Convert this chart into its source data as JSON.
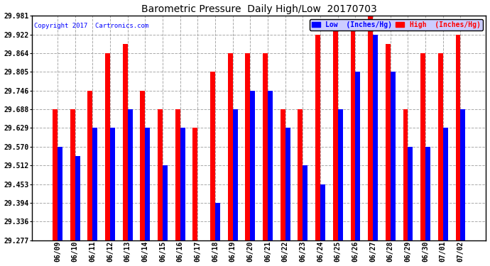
{
  "title": "Barometric Pressure  Daily High/Low  20170703",
  "copyright": "Copyright 2017  Cartronics.com",
  "legend_low": "Low  (Inches/Hg)",
  "legend_high": "High  (Inches/Hg)",
  "dates": [
    "06/09",
    "06/10",
    "06/11",
    "06/12",
    "06/13",
    "06/14",
    "06/15",
    "06/16",
    "06/17",
    "06/18",
    "06/19",
    "06/20",
    "06/21",
    "06/22",
    "06/23",
    "06/24",
    "06/25",
    "06/26",
    "06/27",
    "06/28",
    "06/29",
    "06/30",
    "07/01",
    "07/02"
  ],
  "low_values": [
    29.57,
    29.541,
    29.629,
    29.629,
    29.688,
    29.629,
    29.512,
    29.629,
    29.277,
    29.394,
    29.688,
    29.746,
    29.746,
    29.629,
    29.512,
    29.453,
    29.688,
    29.805,
    29.922,
    29.805,
    29.57,
    29.57,
    29.629,
    29.688
  ],
  "high_values": [
    29.688,
    29.688,
    29.746,
    29.864,
    29.893,
    29.746,
    29.688,
    29.688,
    29.629,
    29.805,
    29.864,
    29.864,
    29.864,
    29.688,
    29.688,
    29.922,
    29.951,
    29.951,
    29.981,
    29.893,
    29.688,
    29.864,
    29.864,
    29.922
  ],
  "ylim_min": 29.277,
  "ylim_max": 29.981,
  "yticks": [
    29.277,
    29.336,
    29.394,
    29.453,
    29.512,
    29.57,
    29.629,
    29.688,
    29.746,
    29.805,
    29.864,
    29.922,
    29.981
  ],
  "bar_width": 0.28,
  "low_color": "#0000ff",
  "high_color": "#ff0000",
  "background_color": "#ffffff",
  "grid_color": "#aaaaaa",
  "title_fontsize": 10,
  "tick_fontsize": 7
}
